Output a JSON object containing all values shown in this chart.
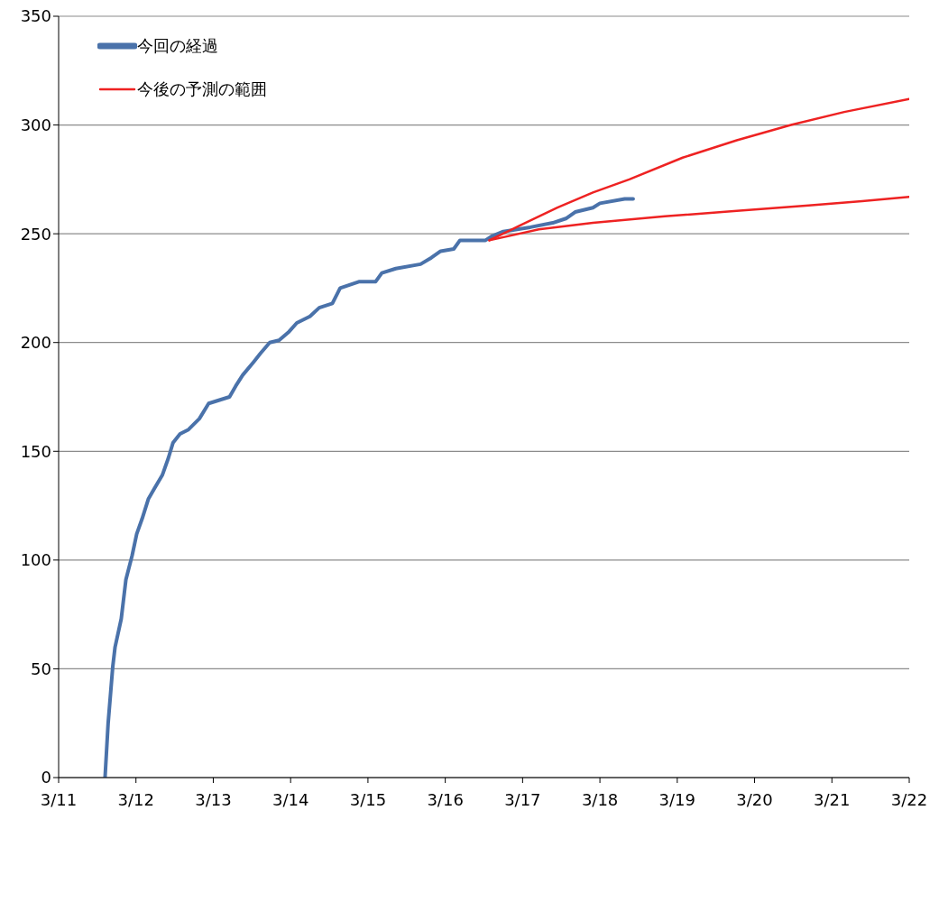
{
  "chart_data": {
    "type": "line",
    "legend": "top left",
    "grid": "y",
    "marker": "none",
    "line_style": "solid",
    "xlim": [
      "--03-11",
      "--03-22"
    ],
    "xticks": [
      {
        "value": "--03-11",
        "label": "3/11"
      },
      {
        "value": "--03-12",
        "label": "3/12"
      },
      {
        "value": "--03-13",
        "label": "3/13"
      },
      {
        "value": "--03-14",
        "label": "3/14"
      },
      {
        "value": "--03-15",
        "label": "3/15"
      },
      {
        "value": "--03-16",
        "label": "3/16"
      },
      {
        "value": "--03-17",
        "label": "3/17"
      },
      {
        "value": "--03-18",
        "label": "3/18"
      },
      {
        "value": "--03-19",
        "label": "3/19"
      },
      {
        "value": "--03-20",
        "label": "3/20"
      },
      {
        "value": "--03-21",
        "label": "3/21"
      },
      {
        "value": "--03-22",
        "label": "3/22"
      }
    ],
    "ylim": [
      0,
      350
    ],
    "yticks": [
      0,
      50,
      100,
      150,
      200,
      250,
      300,
      350
    ],
    "series": [
      {
        "name": "今回の経過",
        "color": "#4a72aa",
        "x": [
          "--03-11T14:24",
          "--03-11T15:22",
          "--03-11T16:48",
          "--03-11T17:31",
          "--03-11T19:26",
          "--03-11T20:53",
          "--03-11T22:48",
          "--03-12T00:14",
          "--03-12T01:55",
          "--03-12T03:50",
          "--03-12T05:46",
          "--03-12T08:10",
          "--03-12T10:05",
          "--03-12T11:31",
          "--03-12T13:41",
          "--03-12T16:19",
          "--03-12T19:41",
          "--03-12T22:34",
          "--03-13T05:02",
          "--03-13T06:58",
          "--03-13T09:07",
          "--03-13T12:29",
          "--03-13T14:38",
          "--03-13T17:31",
          "--03-13T20:24",
          "--03-13T23:31",
          "--03-14T01:55",
          "--03-14T06:00",
          "--03-14T08:53",
          "--03-14T12:58",
          "--03-14T15:22",
          "--03-14T21:22",
          "--03-15T02:24",
          "--03-15T04:19",
          "--03-15T08:38",
          "--03-15T16:19",
          "--03-15T19:41",
          "--03-15T22:34",
          "--03-16T02:38",
          "--03-16T04:34",
          "--03-16T12:29",
          "--03-16T14:38",
          "--03-16T18:00",
          "--03-17T02:24",
          "--03-17T09:22",
          "--03-17T13:26",
          "--03-17T16:19",
          "--03-17T21:50",
          "--03-18T00:00",
          "--03-18T07:41",
          "--03-18T10:19"
        ],
        "values": [
          0,
          25,
          51,
          60,
          73,
          91,
          102,
          112,
          119,
          128,
          133,
          139,
          147,
          154,
          158,
          160,
          165,
          172,
          175,
          180,
          185,
          191,
          195,
          200,
          201,
          205,
          209,
          212,
          216,
          218,
          225,
          228,
          228,
          232,
          234,
          236,
          239,
          242,
          243,
          247,
          247,
          249,
          251,
          253,
          255,
          257,
          260,
          262,
          264,
          266,
          266
        ]
      },
      {
        "name": "今後の予測の範囲",
        "color": "#ee2222",
        "x": [
          "--03-16T13:41",
          "--03-16T23:31",
          "--03-17T10:48",
          "--03-17T21:50",
          "--03-18T09:07",
          "--03-19T01:41",
          "--03-19T18:29",
          "--03-20T11:17",
          "--03-21T03:50",
          "--03-22T00:00"
        ],
        "values": [
          247,
          254,
          262,
          269,
          275,
          285,
          293,
          300,
          306,
          312
        ]
      },
      {
        "color": "#ee2222",
        "x": [
          "--03-16T13:41",
          "--03-17T05:02",
          "--03-17T21:50",
          "--03-18T20:10",
          "--03-19T18:29",
          "--03-20T16:48",
          "--03-21T09:22",
          "--03-22T00:00"
        ],
        "values": [
          247,
          252,
          255,
          258,
          260.5,
          263,
          265,
          267
        ]
      }
    ]
  }
}
